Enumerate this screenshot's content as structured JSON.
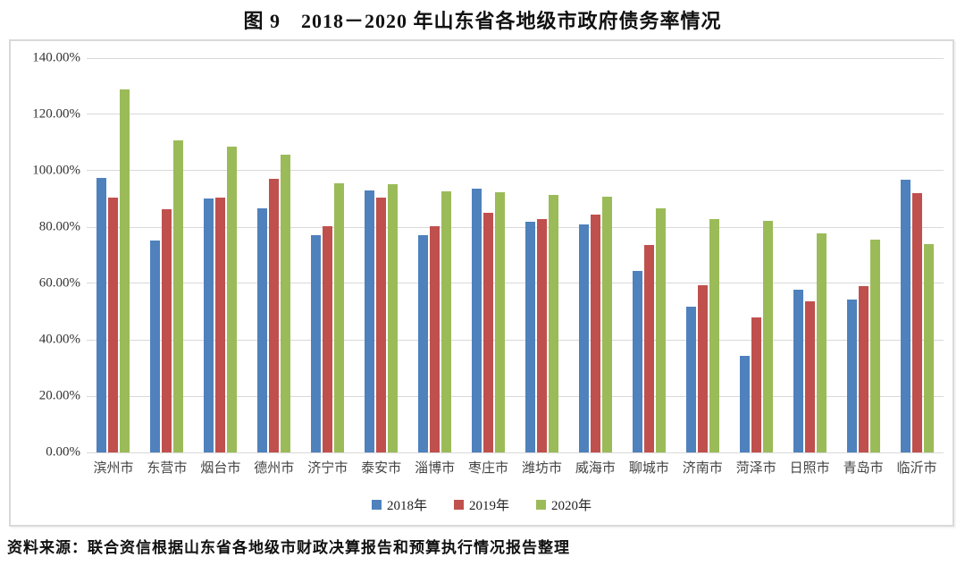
{
  "title": "图 9　2018－2020 年山东省各地级市政府债务率情况",
  "source": "资料来源：联合资信根据山东省各地级市财政决算报告和预算执行情况报告整理",
  "colors": {
    "series_2018": "#4F81BD",
    "series_2019": "#C0504D",
    "series_2020": "#9BBB59",
    "gridline": "#D9D9D9",
    "frame_border": "#D9D9D9",
    "text": "#333333"
  },
  "chart_data": {
    "type": "bar",
    "title": "图 9　2018－2020 年山东省各地级市政府债务率情况",
    "categories": [
      "滨州市",
      "东营市",
      "烟台市",
      "德州市",
      "济宁市",
      "泰安市",
      "淄博市",
      "枣庄市",
      "潍坊市",
      "威海市",
      "聊城市",
      "济南市",
      "菏泽市",
      "日照市",
      "青岛市",
      "临沂市"
    ],
    "series": [
      {
        "name": "2018年",
        "key": "2018",
        "color_key": "series_2018",
        "values": [
          97.5,
          75.1,
          90.2,
          86.8,
          77.2,
          93.0,
          77.0,
          93.5,
          81.8,
          81.0,
          64.3,
          51.7,
          34.2,
          57.9,
          54.4,
          96.8
        ]
      },
      {
        "name": "2019年",
        "key": "2019",
        "color_key": "series_2019",
        "values": [
          90.4,
          86.4,
          90.5,
          97.2,
          80.2,
          90.5,
          80.4,
          85.0,
          83.0,
          84.6,
          73.5,
          59.5,
          47.9,
          53.6,
          59.2,
          92.0
        ]
      },
      {
        "name": "2020年",
        "key": "2020",
        "color_key": "series_2020",
        "values": [
          129.0,
          110.8,
          108.5,
          105.6,
          95.5,
          95.3,
          92.8,
          92.3,
          91.5,
          90.8,
          86.7,
          82.8,
          82.2,
          77.7,
          75.6,
          74.0
        ]
      }
    ],
    "xlabel": "",
    "ylabel": "",
    "ylim": [
      0,
      140
    ],
    "ytick_step": 20,
    "ytick_labels": [
      "0.00%",
      "20.00%",
      "40.00%",
      "60.00%",
      "80.00%",
      "100.00%",
      "120.00%",
      "140.00%"
    ],
    "grid": true,
    "legend_position": "bottom"
  }
}
